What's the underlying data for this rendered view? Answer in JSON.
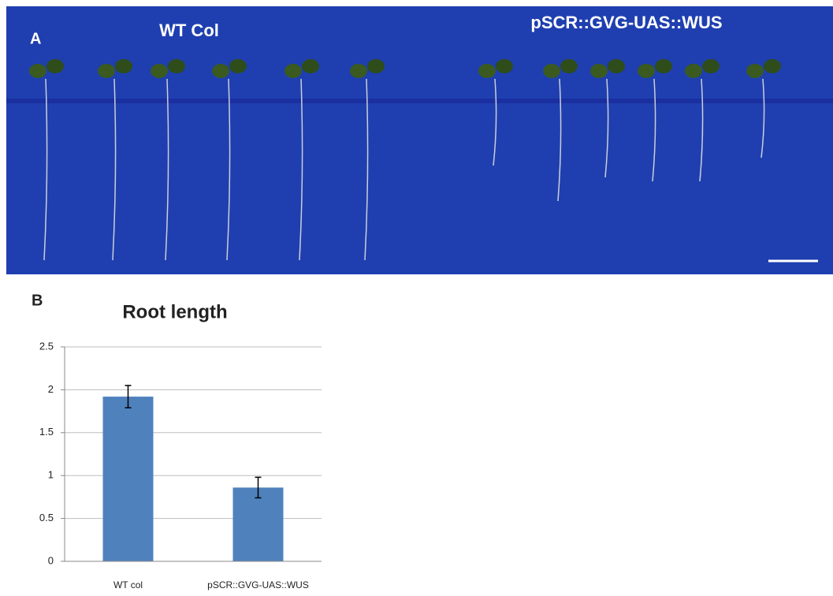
{
  "photo": {
    "panel_label": "A",
    "labels": [
      "WT Col",
      "pSCR::GVG-UAS::WUS"
    ]
  },
  "chart_data": {
    "type": "bar",
    "panel_label": "B",
    "title": "Root length",
    "categories": [
      "WT col",
      "pSCR::GVG-UAS::WUS"
    ],
    "values": [
      1.92,
      0.86
    ],
    "errors": [
      0.13,
      0.12
    ],
    "color": "#4f81bd",
    "ylim": [
      0,
      2.5
    ],
    "yticks": [
      0,
      0.5,
      1,
      1.5,
      2,
      2.5
    ],
    "grid": true
  }
}
